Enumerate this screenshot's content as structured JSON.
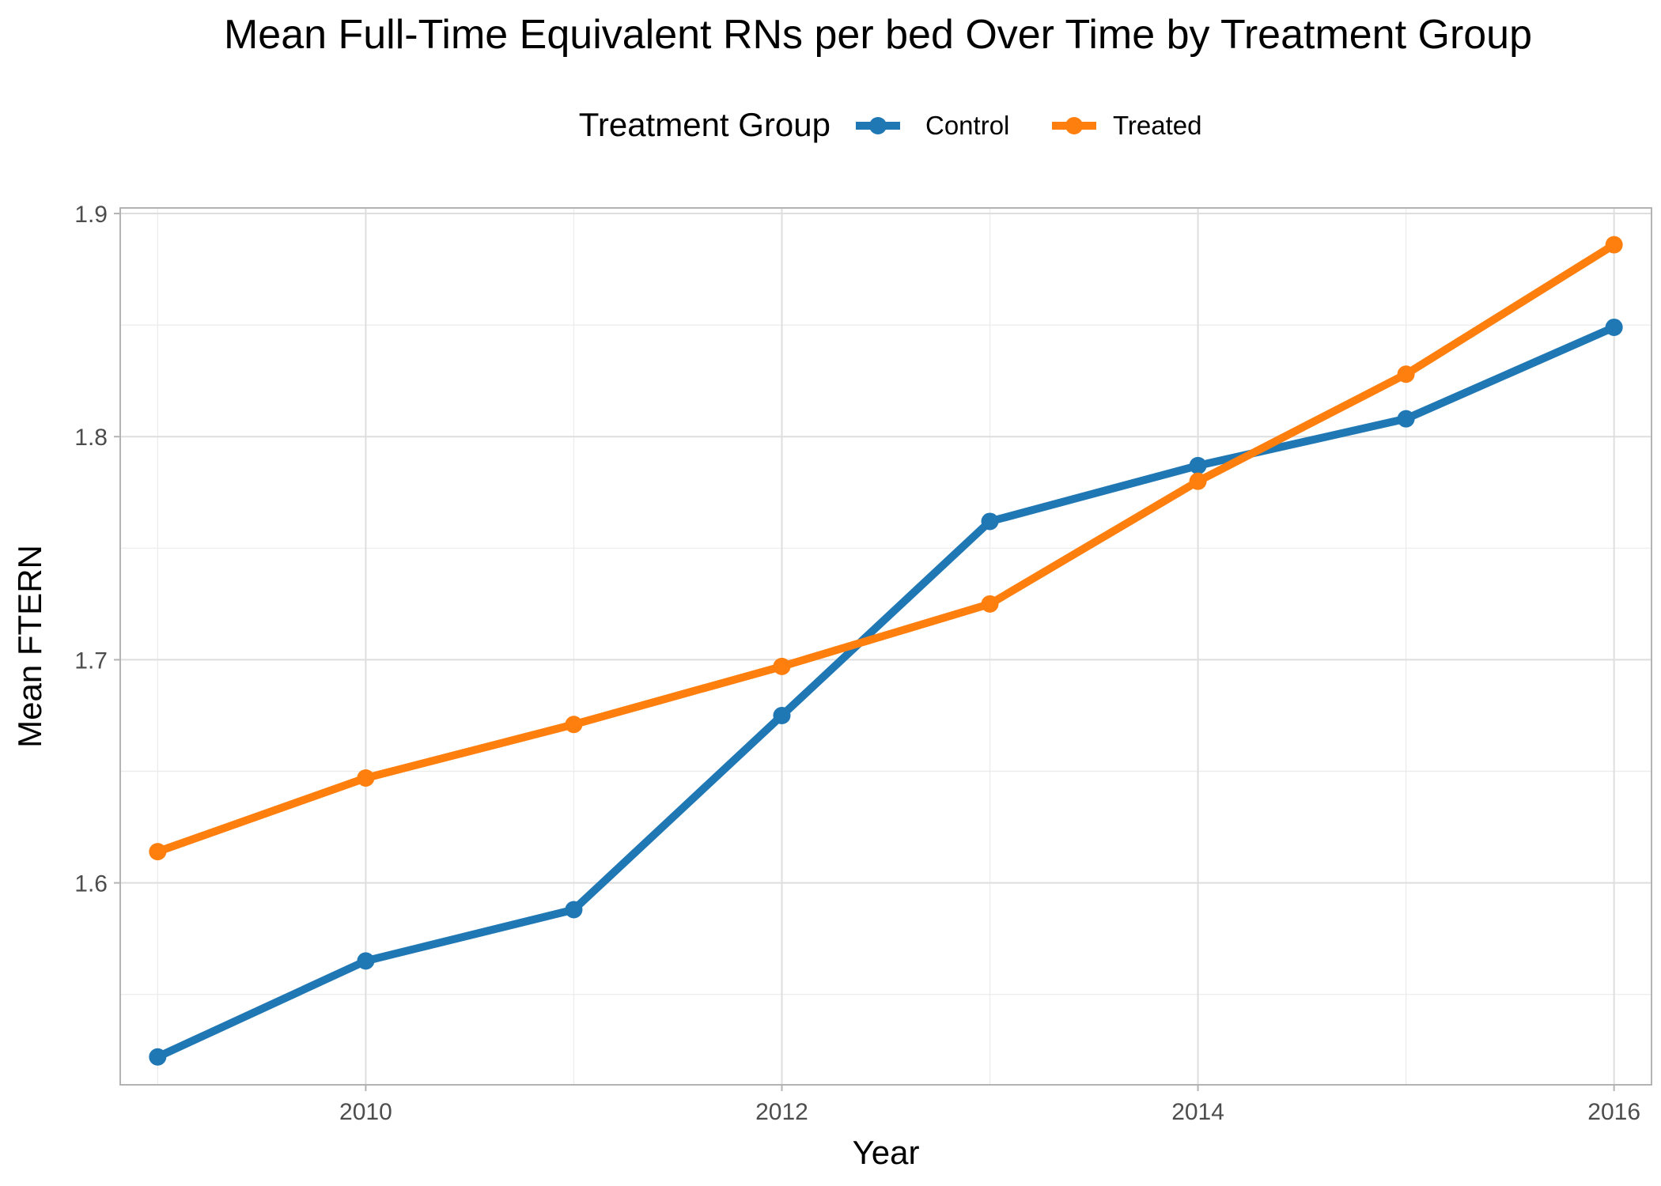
{
  "chart_data": {
    "type": "line",
    "title": "Mean Full-Time Equivalent RNs per bed Over Time by Treatment Group",
    "xlabel": "Year",
    "ylabel": "Mean FTERN",
    "x": [
      2009,
      2010,
      2011,
      2012,
      2013,
      2014,
      2015,
      2016
    ],
    "x_ticks": [
      "2010",
      "2012",
      "2014",
      "2016"
    ],
    "y_ticks": [
      "1.6",
      "1.7",
      "1.8",
      "1.9"
    ],
    "xlim": [
      2008.82,
      2016.18
    ],
    "ylim": [
      1.5095,
      1.9025
    ],
    "grid": true,
    "legend": {
      "title": "Treatment Group",
      "placement": "top"
    },
    "series": [
      {
        "name": "Control",
        "color": "#1f77b4",
        "values": [
          1.522,
          1.565,
          1.588,
          1.675,
          1.762,
          1.787,
          1.808,
          1.849
        ]
      },
      {
        "name": "Treated",
        "color": "#ff7f0e",
        "values": [
          1.614,
          1.647,
          1.671,
          1.697,
          1.725,
          1.78,
          1.828,
          1.886
        ]
      }
    ]
  }
}
